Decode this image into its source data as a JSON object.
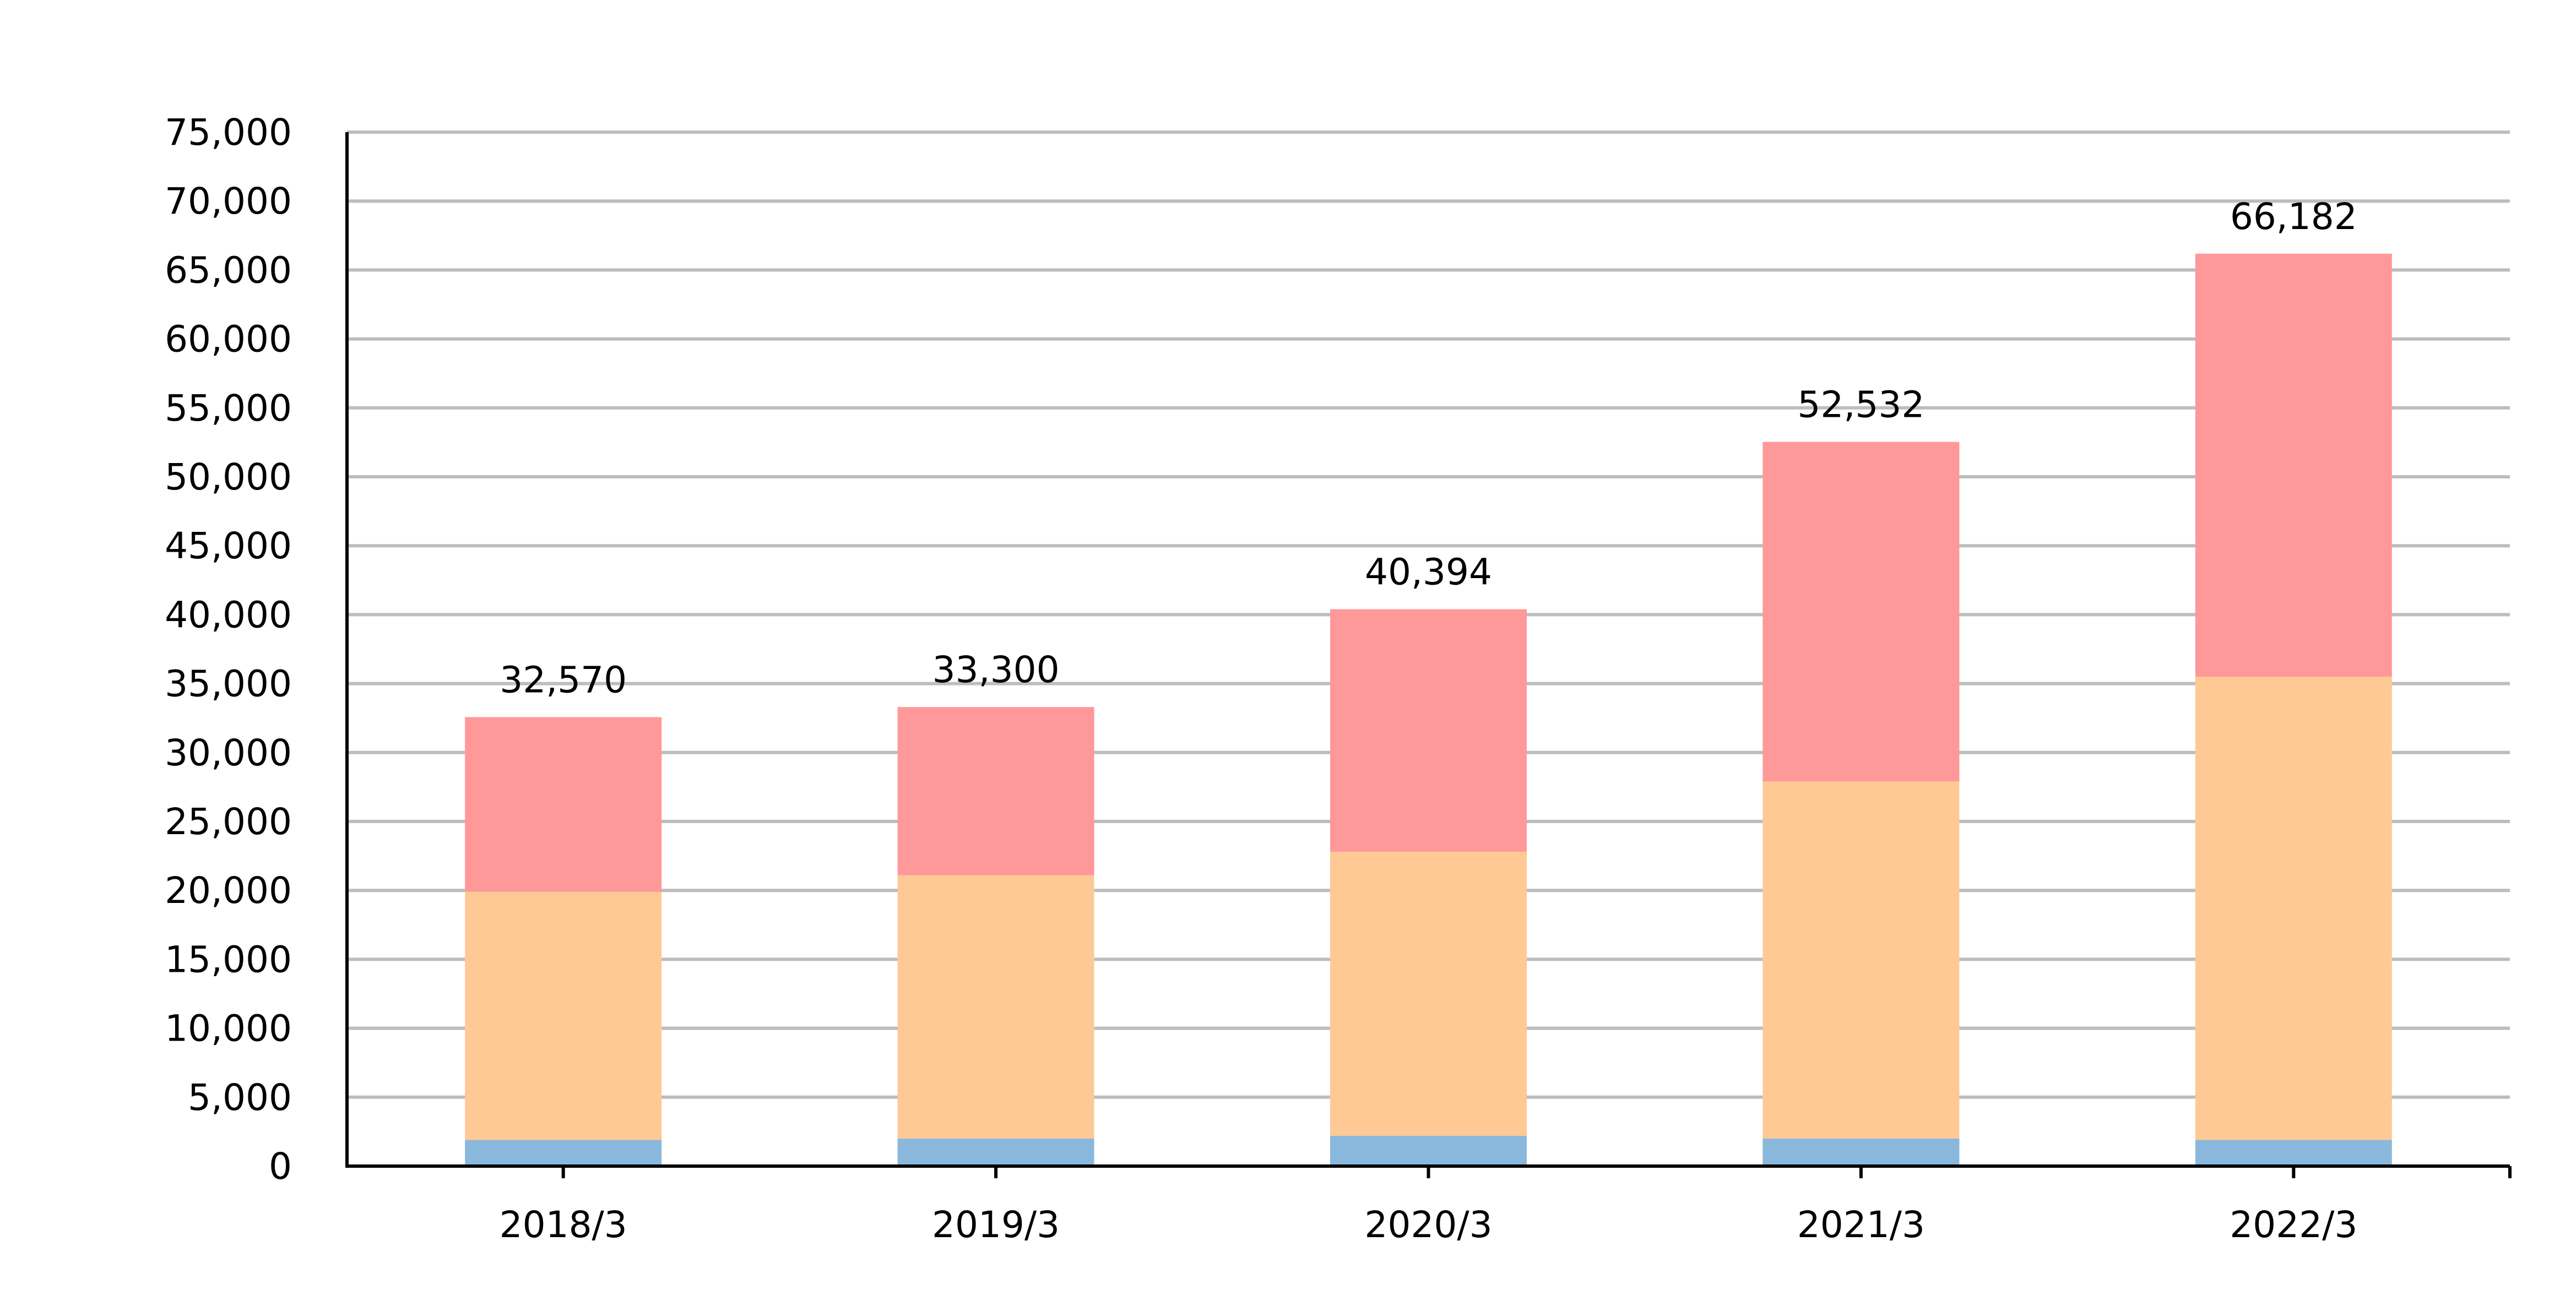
{
  "chart_data": {
    "type": "bar",
    "stacked": true,
    "categories": [
      "2018/3",
      "2019/3",
      "2020/3",
      "2021/3",
      "2022/3"
    ],
    "series": [
      {
        "color": "#8ab8dd",
        "values": [
          1900,
          2000,
          2200,
          2000,
          1900
        ]
      },
      {
        "color": "#fec995",
        "values": [
          18000,
          19100,
          20600,
          25900,
          33600
        ]
      },
      {
        "color": "#ff9899",
        "values": [
          12670,
          12200,
          17594,
          24632,
          30682
        ]
      }
    ],
    "totals": [
      32570,
      33300,
      40394,
      52532,
      66182
    ],
    "total_labels": [
      "32,570",
      "33,300",
      "40,394",
      "52,532",
      "66,182"
    ],
    "y_ticks": [
      "0",
      "5,000",
      "10,000",
      "15,000",
      "20,000",
      "25,000",
      "30,000",
      "35,000",
      "40,000",
      "45,000",
      "50,000",
      "55,000",
      "60,000",
      "65,000",
      "70,000",
      "75,000"
    ],
    "ylim": [
      0,
      75000
    ],
    "y_step": 5000,
    "grid": true,
    "grid_color": "#bdbdbd",
    "title": "",
    "xlabel": "",
    "ylabel": ""
  }
}
